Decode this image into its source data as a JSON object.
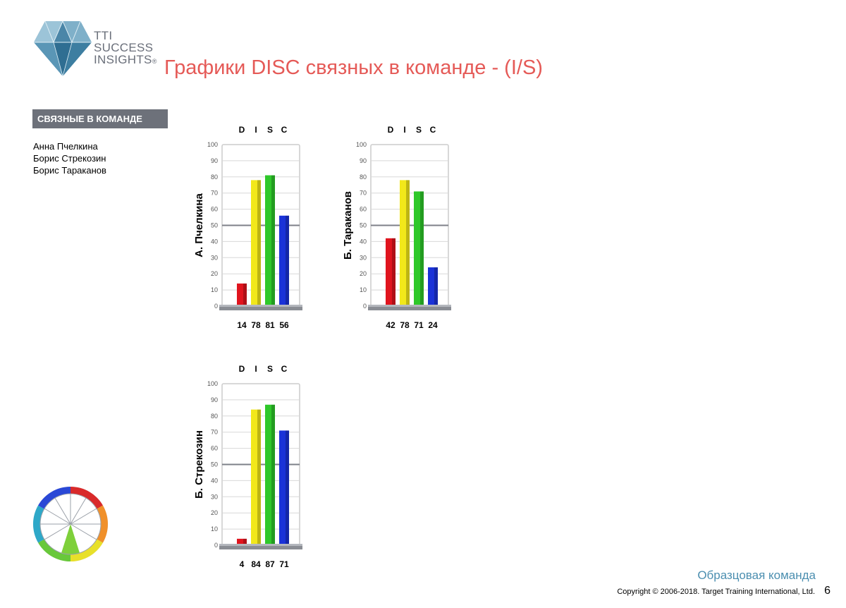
{
  "header": {
    "title": "Графики DISC связных в команде - (I/S)",
    "logo_lines": [
      "TTI",
      "SUCCESS",
      "INSIGHTS"
    ],
    "logo_mark": "®"
  },
  "section_label": "СВЯЗНЫЕ В КОМАНДЕ",
  "members": [
    "Анна Пчелкина",
    "Борис Стрекозин",
    "Борис Тараканов"
  ],
  "chart_data": [
    {
      "type": "bar",
      "title": "А. Пчелкина",
      "categories": [
        "D",
        "I",
        "S",
        "C"
      ],
      "values": [
        14,
        78,
        81,
        56
      ],
      "value_labels": [
        "14",
        "78",
        "81",
        "56"
      ],
      "ylim": [
        0,
        100
      ],
      "yticks": [
        0,
        10,
        20,
        30,
        40,
        50,
        60,
        70,
        80,
        90,
        100
      ],
      "midline": 50,
      "colors": [
        "#e0141e",
        "#f2e81a",
        "#2ec82a",
        "#1a32d8"
      ]
    },
    {
      "type": "bar",
      "title": "Б. Тараканов",
      "categories": [
        "D",
        "I",
        "S",
        "C"
      ],
      "values": [
        42,
        78,
        71,
        24
      ],
      "value_labels": [
        "42",
        "78",
        "71",
        "24"
      ],
      "ylim": [
        0,
        100
      ],
      "yticks": [
        0,
        10,
        20,
        30,
        40,
        50,
        60,
        70,
        80,
        90,
        100
      ],
      "midline": 50,
      "colors": [
        "#e0141e",
        "#f2e81a",
        "#2ec82a",
        "#1a32d8"
      ]
    },
    {
      "type": "bar",
      "title": "Б. Стрекозин",
      "categories": [
        "D",
        "I",
        "S",
        "C"
      ],
      "values": [
        4,
        84,
        87,
        71
      ],
      "value_labels": [
        "4",
        "84",
        "87",
        "71"
      ],
      "ylim": [
        0,
        100
      ],
      "yticks": [
        0,
        10,
        20,
        30,
        40,
        50,
        60,
        70,
        80,
        90,
        100
      ],
      "midline": 50,
      "colors": [
        "#e0141e",
        "#f2e81a",
        "#2ec82a",
        "#1a32d8"
      ]
    }
  ],
  "footer": {
    "team_name": "Образцовая команда",
    "copyright": "Copyright © 2006-2018. Target Training International, Ltd.",
    "page_number": "6"
  },
  "icons": {
    "logo": "diamond-logo-icon",
    "wheel": "disc-wheel-icon"
  }
}
